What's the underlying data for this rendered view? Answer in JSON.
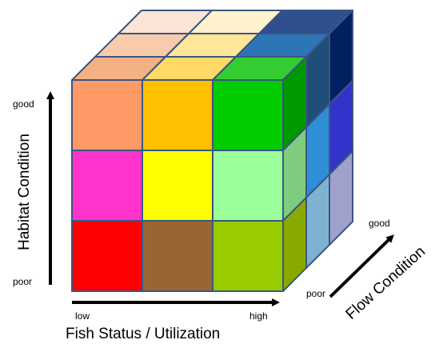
{
  "axes": {
    "vertical": {
      "title": "Habitat Condition",
      "low": "poor",
      "high": "good"
    },
    "horizontal": {
      "title": "Fish Status / Utilization",
      "low": "low",
      "high": "high"
    },
    "depth": {
      "title": "Flow Condition",
      "low": "poor",
      "high": "good"
    }
  },
  "cube": {
    "outline_color": "#3A5682",
    "front": [
      [
        "#FF9966",
        "#FFC000",
        "#00CC00"
      ],
      [
        "#FF33CC",
        "#FFFF00",
        "#99FF99"
      ],
      [
        "#FF0000",
        "#996633",
        "#99CC00"
      ]
    ],
    "top": [
      [
        "#FCE4D6",
        "#FFF2CC",
        "#2F4F8F"
      ],
      [
        "#F8CBAD",
        "#FFE699",
        "#2E75B6"
      ],
      [
        "#F4B183",
        "#FFD966",
        "#33CC33"
      ]
    ],
    "side": [
      [
        "#009900",
        "#1F4E79",
        "#002060"
      ],
      [
        "#7FCC7F",
        "#2E8FD6",
        "#3333CC"
      ],
      [
        "#88AA00",
        "#7FB2D0",
        "#A0A0CC"
      ]
    ]
  }
}
